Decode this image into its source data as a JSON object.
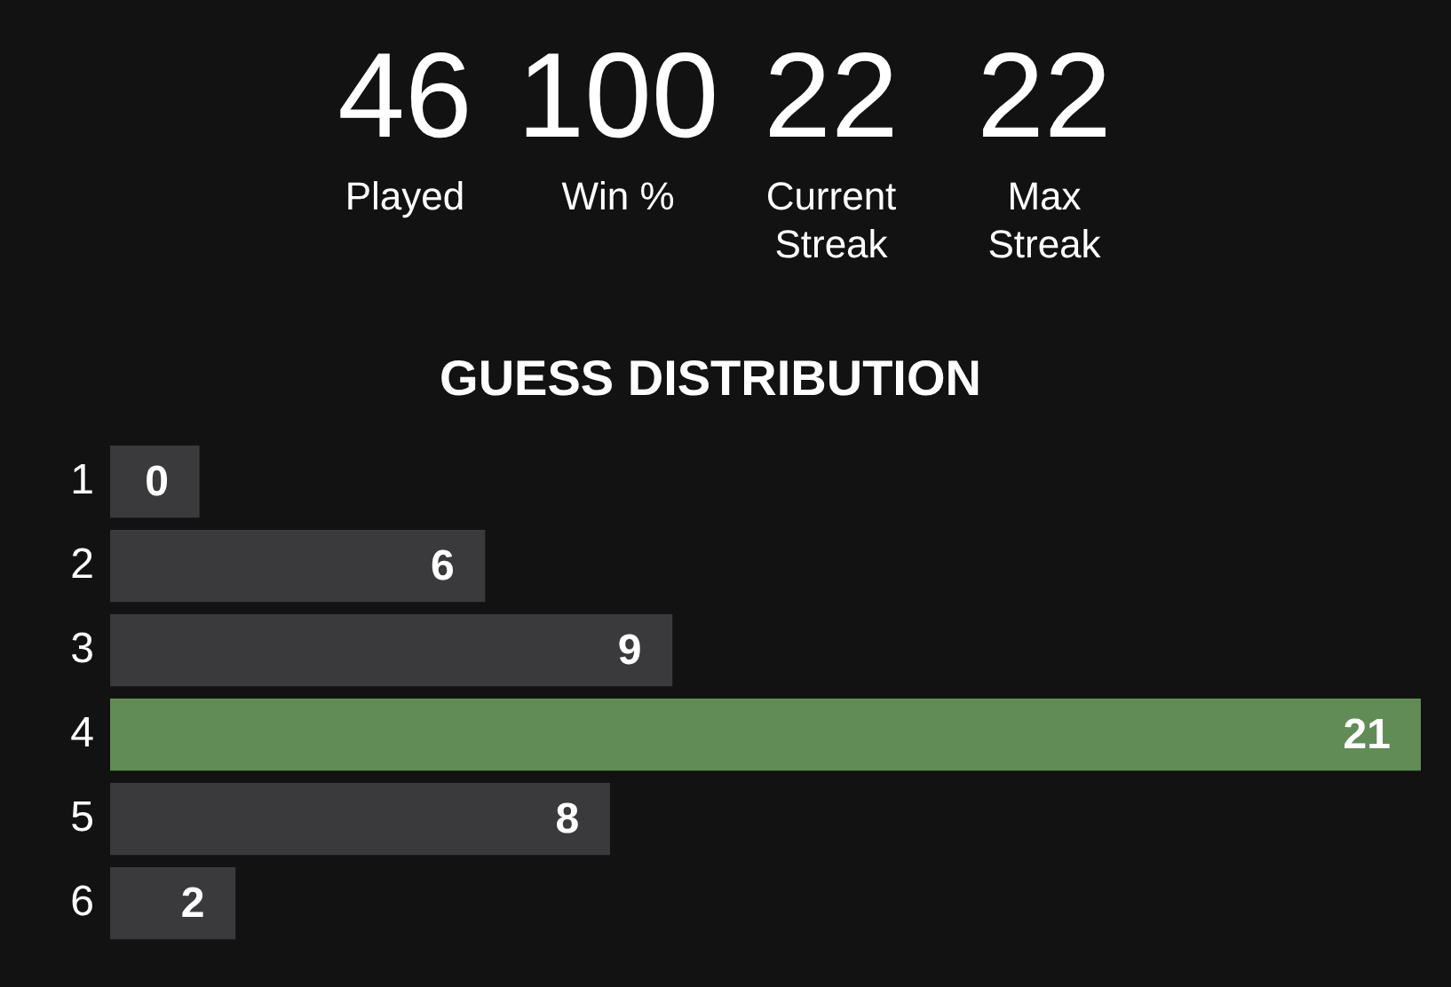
{
  "chart_data": [
    {
      "type": "other",
      "categories": [
        "Played",
        "Win %",
        "Current Streak",
        "Max Streak"
      ],
      "values": [
        46,
        100,
        22,
        22
      ],
      "data_labels": true
    },
    {
      "type": "bar",
      "title": "GUESS DISTRIBUTION",
      "orientation": "horizontal",
      "categories": [
        "1",
        "2",
        "3",
        "4",
        "5",
        "6"
      ],
      "values": [
        0,
        6,
        9,
        21,
        8,
        2
      ],
      "colors": [
        "#3a3a3c",
        "#3a3a3c",
        "#3a3a3c",
        "#618c55",
        "#3a3a3c",
        "#3a3a3c"
      ],
      "data_labels": true,
      "grid": false,
      "legend": false,
      "tick_labels": "y"
    }
  ]
}
